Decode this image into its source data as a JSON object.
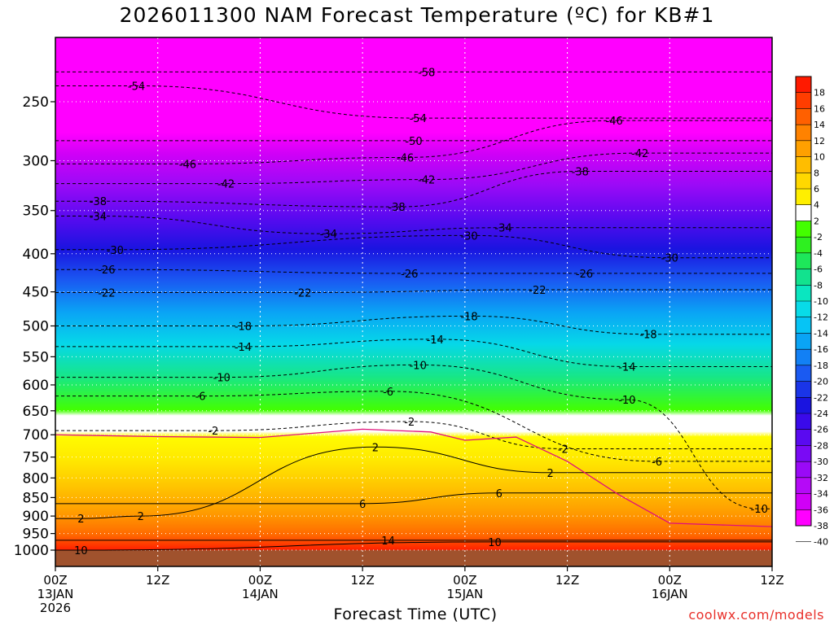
{
  "title": "2026011300 NAM Forecast Temperature (ºC) for KB#1",
  "credit": "coolwx.com/models",
  "chart_data": {
    "type": "heatmap",
    "title": "2026011300 NAM Forecast Temperature (ºC) for KB#1",
    "xlabel": "Forecast Time (UTC)",
    "ylabel": "",
    "xlim": [
      0,
      84
    ],
    "y_scale": "log (pressure)",
    "ylim": [
      1040,
      200
    ],
    "x_ticks": [
      {
        "x": 0,
        "label": "00Z",
        "sub": "13JAN",
        "sub2": "2026"
      },
      {
        "x": 12,
        "label": "12Z",
        "sub": "",
        "sub2": ""
      },
      {
        "x": 24,
        "label": "00Z",
        "sub": "14JAN",
        "sub2": ""
      },
      {
        "x": 36,
        "label": "12Z",
        "sub": "",
        "sub2": ""
      },
      {
        "x": 48,
        "label": "00Z",
        "sub": "15JAN",
        "sub2": ""
      },
      {
        "x": 60,
        "label": "12Z",
        "sub": "",
        "sub2": ""
      },
      {
        "x": 72,
        "label": "00Z",
        "sub": "16JAN",
        "sub2": ""
      },
      {
        "x": 84,
        "label": "12Z",
        "sub": "",
        "sub2": ""
      }
    ],
    "y_ticks": [
      250,
      300,
      350,
      400,
      450,
      500,
      550,
      600,
      650,
      700,
      750,
      800,
      850,
      900,
      950,
      1000
    ],
    "colorbar_labels": [
      "18",
      "16",
      "14",
      "12",
      "10",
      "8",
      "6",
      "4",
      "2",
      "-2",
      "-4",
      "-6",
      "-8",
      "-10",
      "-12",
      "-14",
      "-16",
      "-18",
      "-20",
      "-22",
      "-24",
      "-26",
      "-28",
      "-30",
      "-32",
      "-34",
      "-36",
      "-38",
      "-40"
    ],
    "colorbar_colors": [
      "#ff1a00",
      "#ff3d00",
      "#ff6000",
      "#ff8200",
      "#ffa000",
      "#ffbd00",
      "#ffd800",
      "#ffef00",
      "#ffffff",
      "#43ff00",
      "#2ef020",
      "#1ee75a",
      "#12e28e",
      "#0ae6c0",
      "#08dbe8",
      "#06c4f5",
      "#0aa4f5",
      "#1280f5",
      "#1a5af2",
      "#1a35e8",
      "#1a14e0",
      "#3a0aea",
      "#5a0af0",
      "#7a0af5",
      "#9a0af7",
      "#b50af7",
      "#d000f7",
      "#ff00ff"
    ],
    "contours": [
      {
        "value": -58,
        "label": "-58",
        "x": 43.5,
        "p": 228
      },
      {
        "value": -54,
        "label": "-54",
        "x": 9.5,
        "p": 238
      },
      {
        "value": -54,
        "label": "-54",
        "x": 42.5,
        "p": 263
      },
      {
        "value": -50,
        "label": "-50",
        "x": 42.0,
        "p": 282
      },
      {
        "value": -46,
        "label": "-46",
        "x": 15.5,
        "p": 303
      },
      {
        "value": -46,
        "label": "-46",
        "x": 41.0,
        "p": 297
      },
      {
        "value": -46,
        "label": "-46",
        "x": 65.5,
        "p": 265
      },
      {
        "value": -42,
        "label": "-42",
        "x": 20.0,
        "p": 322
      },
      {
        "value": -42,
        "label": "-42",
        "x": 43.5,
        "p": 318
      },
      {
        "value": -42,
        "label": "-42",
        "x": 68.5,
        "p": 293
      },
      {
        "value": -38,
        "label": "-38",
        "x": 5.0,
        "p": 340
      },
      {
        "value": -38,
        "label": "-38",
        "x": 40.0,
        "p": 346
      },
      {
        "value": -38,
        "label": "-38",
        "x": 61.5,
        "p": 310
      },
      {
        "value": -34,
        "label": "-34",
        "x": 5.0,
        "p": 356
      },
      {
        "value": -34,
        "label": "-34",
        "x": 32.0,
        "p": 376
      },
      {
        "value": -34,
        "label": "-34",
        "x": 52.5,
        "p": 369
      },
      {
        "value": -30,
        "label": "-30",
        "x": 7.0,
        "p": 395
      },
      {
        "value": -30,
        "label": "-30",
        "x": 48.5,
        "p": 378
      },
      {
        "value": -30,
        "label": "-30",
        "x": 72.0,
        "p": 405
      },
      {
        "value": -26,
        "label": "-26",
        "x": 6.0,
        "p": 420
      },
      {
        "value": -26,
        "label": "-26",
        "x": 41.5,
        "p": 425
      },
      {
        "value": -26,
        "label": "-26",
        "x": 62.0,
        "p": 425
      },
      {
        "value": -22,
        "label": "-22",
        "x": 6.0,
        "p": 451
      },
      {
        "value": -22,
        "label": "-22",
        "x": 29.0,
        "p": 451
      },
      {
        "value": -22,
        "label": "-22",
        "x": 56.5,
        "p": 447
      },
      {
        "value": -18,
        "label": "-18",
        "x": 22.0,
        "p": 500
      },
      {
        "value": -18,
        "label": "-18",
        "x": 48.5,
        "p": 485
      },
      {
        "value": -18,
        "label": "-18",
        "x": 69.5,
        "p": 513
      },
      {
        "value": -14,
        "label": "-14",
        "x": 22.0,
        "p": 533
      },
      {
        "value": -14,
        "label": "-14",
        "x": 44.5,
        "p": 521
      },
      {
        "value": -14,
        "label": "-14",
        "x": 67.0,
        "p": 567
      },
      {
        "value": -10,
        "label": "-10",
        "x": 19.5,
        "p": 586
      },
      {
        "value": -10,
        "label": "-10",
        "x": 42.5,
        "p": 564
      },
      {
        "value": -10,
        "label": "-10",
        "x": 67.0,
        "p": 628
      },
      {
        "value": -10,
        "label": "-10",
        "x": 82.5,
        "p": 880
      },
      {
        "value": -6,
        "label": "-6",
        "x": 17.0,
        "p": 621
      },
      {
        "value": -6,
        "label": "-6",
        "x": 39.0,
        "p": 612
      },
      {
        "value": -6,
        "label": "-6",
        "x": 70.5,
        "p": 760
      },
      {
        "value": -2,
        "label": "-2",
        "x": 18.5,
        "p": 691
      },
      {
        "value": -2,
        "label": "-2",
        "x": 41.5,
        "p": 672
      },
      {
        "value": -2,
        "label": "-2",
        "x": 59.5,
        "p": 731
      },
      {
        "value": 2,
        "label": "2",
        "x": 3.0,
        "p": 907
      },
      {
        "value": 2,
        "label": "2",
        "x": 10.0,
        "p": 900
      },
      {
        "value": 2,
        "label": "2",
        "x": 37.5,
        "p": 727
      },
      {
        "value": 2,
        "label": "2",
        "x": 58.0,
        "p": 787
      },
      {
        "value": 6,
        "label": "6",
        "x": 36.0,
        "p": 866
      },
      {
        "value": 6,
        "label": "6",
        "x": 52.0,
        "p": 838
      },
      {
        "value": 10,
        "label": "10",
        "x": 3.0,
        "p": 1000
      },
      {
        "value": 10,
        "label": "10",
        "x": 51.5,
        "p": 975
      },
      {
        "value": 14,
        "label": "14",
        "x": 39.0,
        "p": 970
      }
    ]
  }
}
